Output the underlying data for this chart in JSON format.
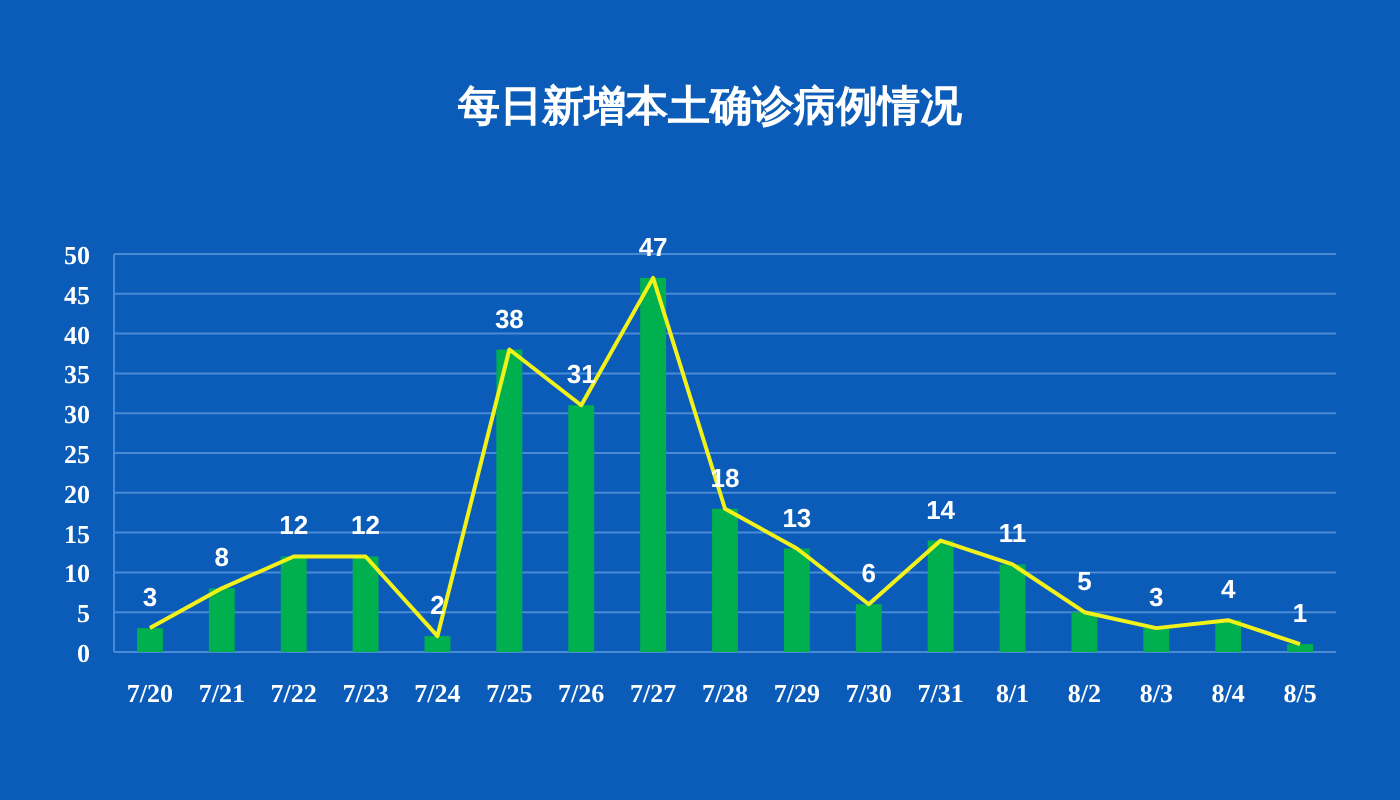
{
  "chart_data": {
    "type": "bar",
    "title": "每日新增本土确诊病例情况",
    "categories": [
      "7/20",
      "7/21",
      "7/22",
      "7/23",
      "7/24",
      "7/25",
      "7/26",
      "7/27",
      "7/28",
      "7/29",
      "7/30",
      "7/31",
      "8/1",
      "8/2",
      "8/3",
      "8/4",
      "8/5"
    ],
    "series": [
      {
        "color": "#00b04f",
        "values": [
          3,
          8,
          12,
          12,
          2,
          38,
          31,
          47,
          18,
          13,
          6,
          14,
          11,
          5,
          3,
          4,
          1
        ],
        "value_labels": [
          "3",
          "8",
          "12",
          "12",
          "2",
          "38",
          "31",
          "47",
          "18",
          "13",
          "6",
          "14",
          "11",
          "5",
          "3",
          "4",
          "1"
        ]
      },
      {
        "type": "line",
        "color": "#f2f21a",
        "values": [
          3,
          8,
          12,
          12,
          2,
          38,
          31,
          47,
          18,
          13,
          6,
          14,
          11,
          5,
          3,
          4,
          1
        ]
      }
    ],
    "ylim": [
      0,
      50
    ],
    "yticks": [
      0,
      5,
      10,
      15,
      20,
      25,
      30,
      35,
      40,
      45,
      50
    ],
    "grid": "y"
  }
}
